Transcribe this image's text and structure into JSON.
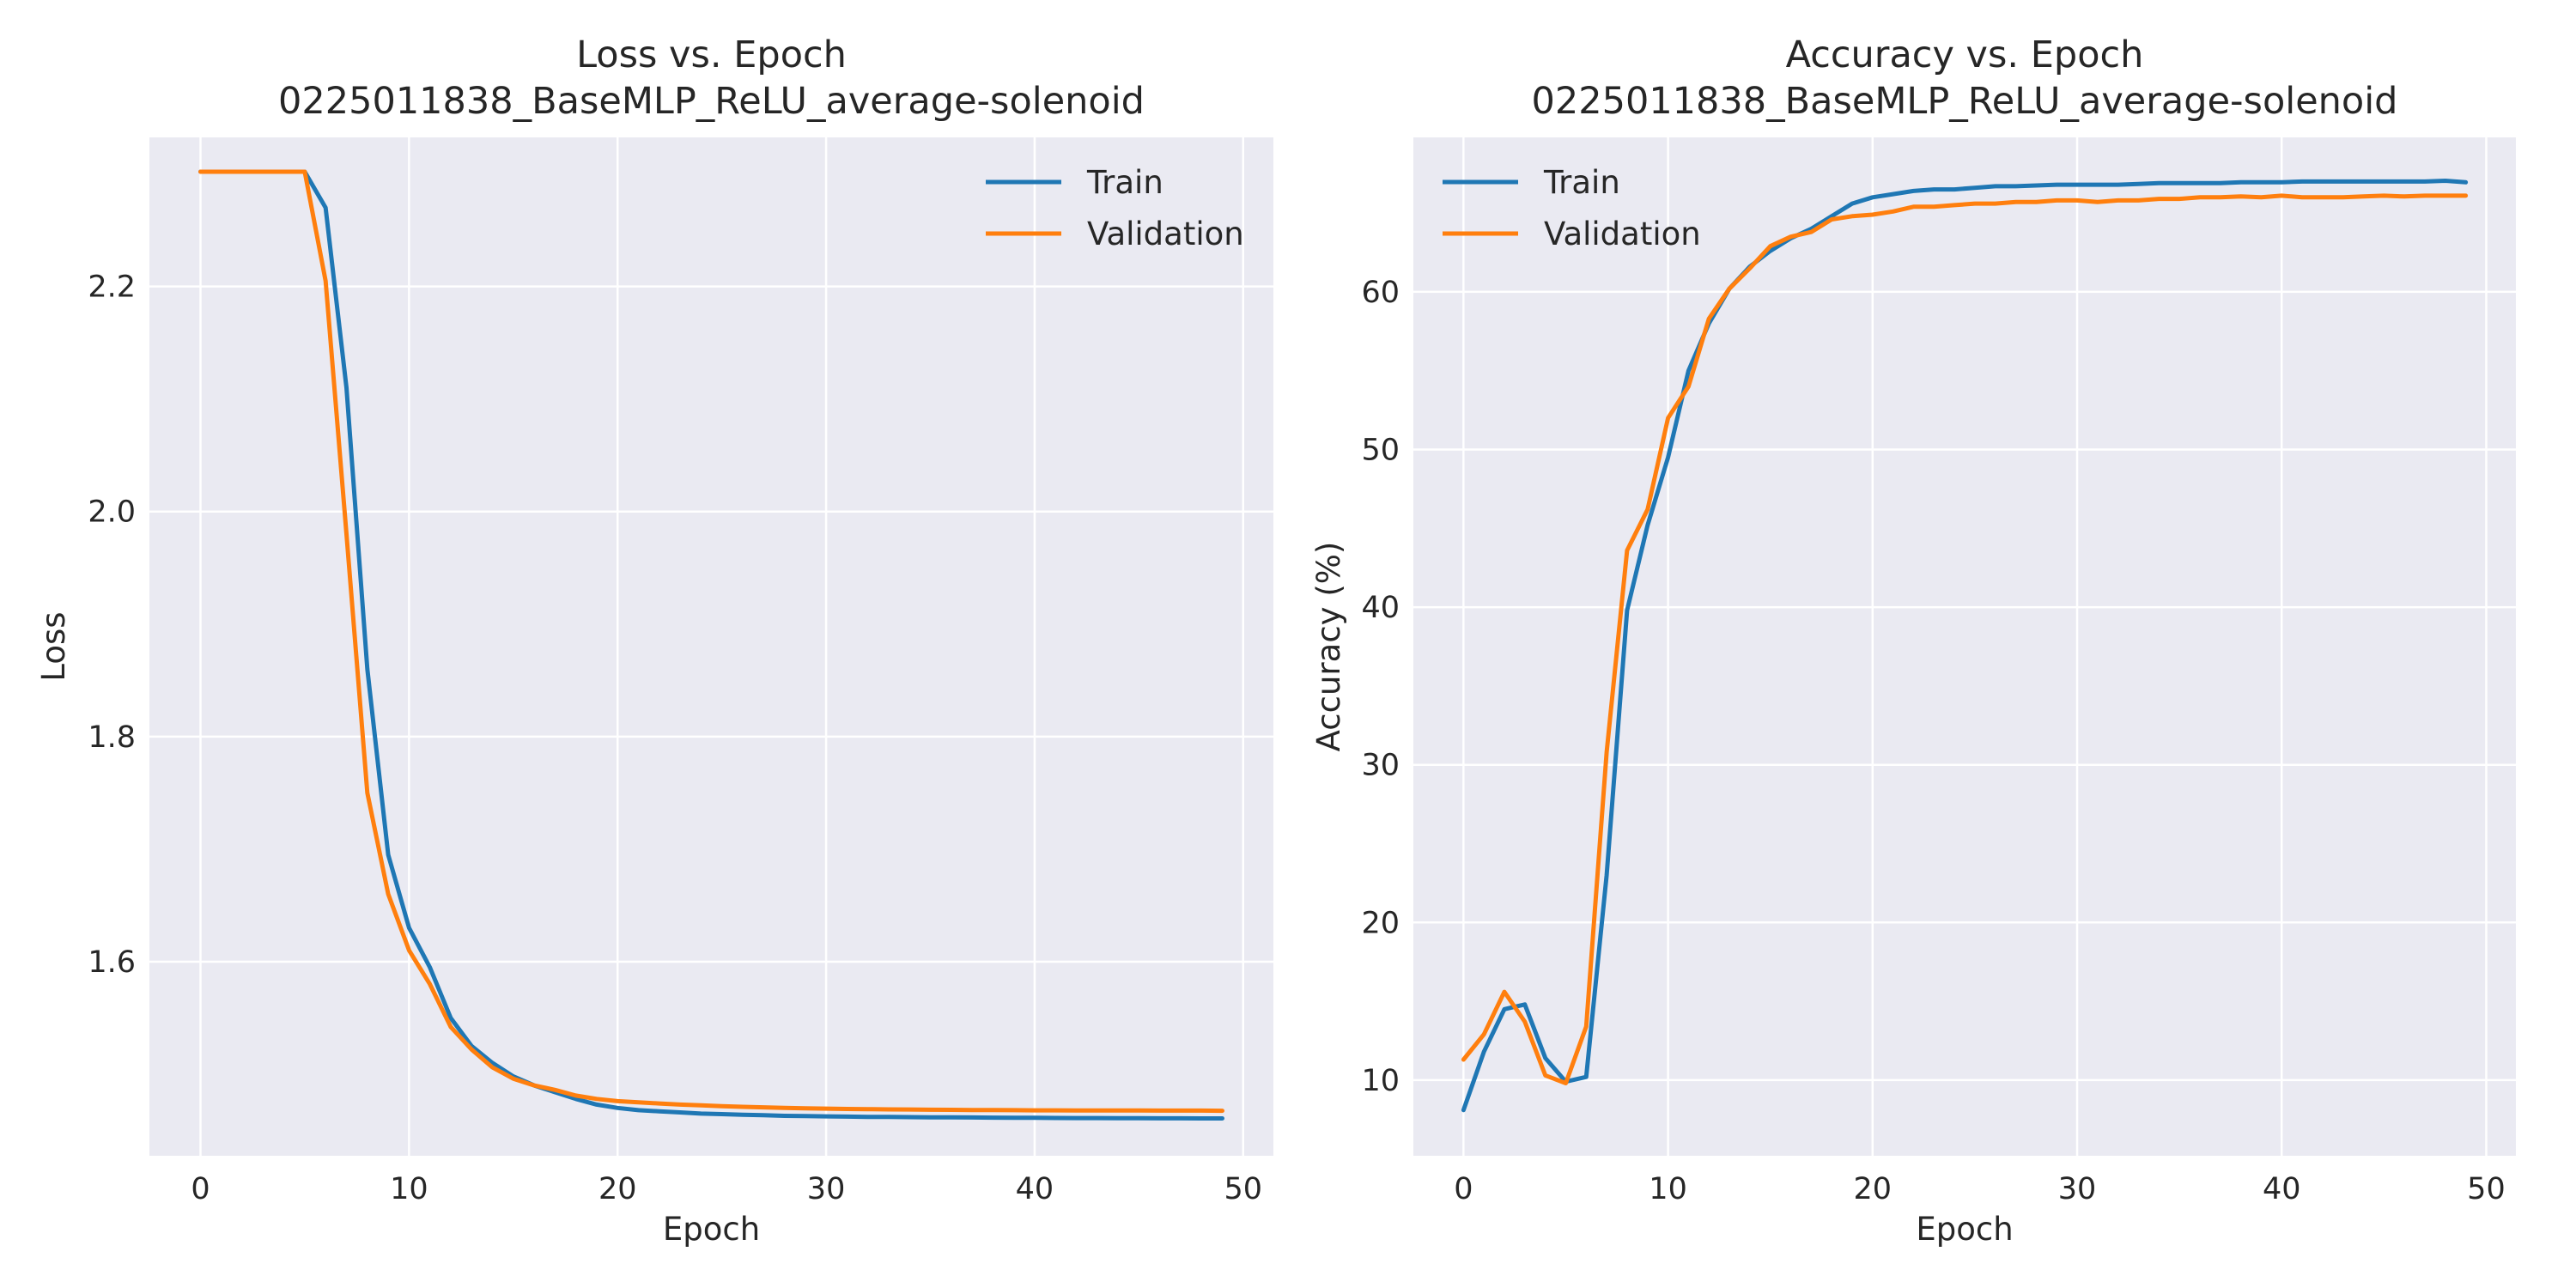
{
  "chart_data": [
    {
      "type": "line",
      "title": [
        "Loss vs. Epoch",
        "0225011838_BaseMLP_ReLU_average-solenoid"
      ],
      "xlabel": "Epoch",
      "ylabel": "Loss",
      "xlim": [
        -2.45,
        51.45
      ],
      "ylim": [
        1.4275,
        2.3325
      ],
      "xticks": [
        0,
        10,
        20,
        30,
        40,
        50
      ],
      "yticks": [
        1.6,
        1.8,
        2.0,
        2.2
      ],
      "ytick_labels": [
        "1.6",
        "1.8",
        "2.0",
        "2.2"
      ],
      "grid": true,
      "legend": "upper-right",
      "series": [
        {
          "name": "Train",
          "color": "#1f77b4",
          "x": [
            0,
            1,
            2,
            3,
            4,
            5,
            6,
            7,
            8,
            9,
            10,
            11,
            12,
            13,
            14,
            15,
            16,
            17,
            18,
            19,
            20,
            21,
            22,
            23,
            24,
            25,
            26,
            27,
            28,
            29,
            30,
            31,
            32,
            33,
            34,
            35,
            36,
            37,
            38,
            39,
            40,
            41,
            42,
            43,
            44,
            45,
            46,
            47,
            48,
            49
          ],
          "y": [
            2.302,
            2.302,
            2.302,
            2.302,
            2.302,
            2.302,
            2.27,
            2.11,
            1.86,
            1.695,
            1.63,
            1.595,
            1.55,
            1.525,
            1.51,
            1.498,
            1.49,
            1.484,
            1.478,
            1.473,
            1.47,
            1.468,
            1.467,
            1.466,
            1.465,
            1.4645,
            1.464,
            1.4635,
            1.463,
            1.4628,
            1.4625,
            1.4623,
            1.4621,
            1.462,
            1.4618,
            1.4617,
            1.4616,
            1.4615,
            1.4614,
            1.4613,
            1.4612,
            1.4611,
            1.461,
            1.461,
            1.4609,
            1.4609,
            1.4608,
            1.4608,
            1.4607,
            1.4607
          ]
        },
        {
          "name": "Validation",
          "color": "#ff7f0e",
          "x": [
            0,
            1,
            2,
            3,
            4,
            5,
            6,
            7,
            8,
            9,
            10,
            11,
            12,
            13,
            14,
            15,
            16,
            17,
            18,
            19,
            20,
            21,
            22,
            23,
            24,
            25,
            26,
            27,
            28,
            29,
            30,
            31,
            32,
            33,
            34,
            35,
            36,
            37,
            38,
            39,
            40,
            41,
            42,
            43,
            44,
            45,
            46,
            47,
            48,
            49
          ],
          "y": [
            2.302,
            2.302,
            2.302,
            2.302,
            2.302,
            2.302,
            2.205,
            1.98,
            1.75,
            1.66,
            1.61,
            1.58,
            1.542,
            1.522,
            1.506,
            1.496,
            1.49,
            1.486,
            1.481,
            1.478,
            1.476,
            1.475,
            1.474,
            1.473,
            1.4723,
            1.4716,
            1.471,
            1.4705,
            1.47,
            1.4697,
            1.4694,
            1.4691,
            1.4689,
            1.4687,
            1.4686,
            1.4684,
            1.4683,
            1.4682,
            1.4681,
            1.468,
            1.4679,
            1.4679,
            1.4678,
            1.4678,
            1.4677,
            1.4677,
            1.4676,
            1.4676,
            1.4676,
            1.4675
          ]
        }
      ]
    },
    {
      "type": "line",
      "title": [
        "Accuracy vs. Epoch",
        "0225011838_BaseMLP_ReLU_average-solenoid"
      ],
      "xlabel": "Epoch",
      "ylabel": "Accuracy (%)",
      "xlim": [
        -2.45,
        51.45
      ],
      "ylim": [
        5.2,
        69.8
      ],
      "xticks": [
        0,
        10,
        20,
        30,
        40,
        50
      ],
      "yticks": [
        10,
        20,
        30,
        40,
        50,
        60
      ],
      "ytick_labels": [
        "10",
        "20",
        "30",
        "40",
        "50",
        "60"
      ],
      "grid": true,
      "legend": "upper-left",
      "series": [
        {
          "name": "Train",
          "color": "#1f77b4",
          "x": [
            0,
            1,
            2,
            3,
            4,
            5,
            6,
            7,
            8,
            9,
            10,
            11,
            12,
            13,
            14,
            15,
            16,
            17,
            18,
            19,
            20,
            21,
            22,
            23,
            24,
            25,
            26,
            27,
            28,
            29,
            30,
            31,
            32,
            33,
            34,
            35,
            36,
            37,
            38,
            39,
            40,
            41,
            42,
            43,
            44,
            45,
            46,
            47,
            48,
            49
          ],
          "y": [
            8.1,
            11.8,
            14.5,
            14.8,
            11.4,
            9.9,
            10.2,
            23.0,
            39.8,
            45.2,
            49.5,
            55.0,
            58.0,
            60.2,
            61.6,
            62.6,
            63.4,
            64.0,
            64.8,
            65.6,
            66.0,
            66.2,
            66.4,
            66.5,
            66.5,
            66.6,
            66.7,
            66.7,
            66.75,
            66.8,
            66.8,
            66.8,
            66.8,
            66.85,
            66.9,
            66.9,
            66.9,
            66.9,
            66.95,
            66.95,
            66.95,
            67.0,
            67.0,
            67.0,
            67.0,
            67.0,
            67.0,
            67.0,
            67.05,
            66.95
          ]
        },
        {
          "name": "Validation",
          "color": "#ff7f0e",
          "x": [
            0,
            1,
            2,
            3,
            4,
            5,
            6,
            7,
            8,
            9,
            10,
            11,
            12,
            13,
            14,
            15,
            16,
            17,
            18,
            19,
            20,
            21,
            22,
            23,
            24,
            25,
            26,
            27,
            28,
            29,
            30,
            31,
            32,
            33,
            34,
            35,
            36,
            37,
            38,
            39,
            40,
            41,
            42,
            43,
            44,
            45,
            46,
            47,
            48,
            49
          ],
          "y": [
            11.3,
            12.9,
            15.6,
            13.7,
            10.3,
            9.8,
            13.4,
            30.8,
            43.6,
            46.2,
            52.0,
            54.0,
            58.3,
            60.2,
            61.5,
            62.9,
            63.5,
            63.8,
            64.6,
            64.8,
            64.9,
            65.1,
            65.4,
            65.4,
            65.5,
            65.6,
            65.6,
            65.7,
            65.7,
            65.8,
            65.8,
            65.7,
            65.8,
            65.8,
            65.9,
            65.9,
            66.0,
            66.0,
            66.05,
            66.0,
            66.1,
            66.0,
            66.0,
            66.0,
            66.05,
            66.1,
            66.05,
            66.1,
            66.1,
            66.1
          ]
        }
      ]
    }
  ]
}
